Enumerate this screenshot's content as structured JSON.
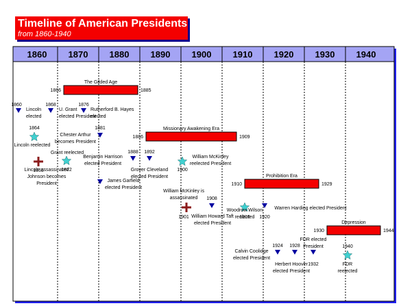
{
  "header": {
    "title": "Timeline of American Presidents",
    "subtitle": "from 1860-1940"
  },
  "axis": {
    "decades": [
      "1860",
      "1870",
      "1880",
      "1890",
      "1900",
      "1910",
      "1920",
      "1930",
      "1940"
    ]
  },
  "colors": {
    "title_bg": "#f40000",
    "title_shadow": "#00008b",
    "era_bar": "#f40000",
    "axis_bg": "#2020ee",
    "axis_header": "#a4a4f4",
    "marker_triangle": "#0000a0",
    "marker_star": "#40d0d0",
    "marker_cross": "#8b1a1a"
  },
  "eras": [
    {
      "name": "The Gilded Age",
      "start": "1866",
      "end": "1885"
    },
    {
      "name": "Missionary Awakening Era",
      "start": "1886",
      "end": "1909"
    },
    {
      "name": "Prohibition Era",
      "start": "1910",
      "end": "1929"
    },
    {
      "name": "Depression",
      "start": "1930",
      "end": "1944"
    }
  ],
  "events": [
    {
      "marker": "triangle",
      "year": "1860",
      "text": [
        "Lincoln",
        "elected"
      ]
    },
    {
      "marker": "triangle",
      "year": "1868",
      "text": [
        "U. Grant",
        "elected President"
      ]
    },
    {
      "marker": "triangle",
      "year": "1876",
      "text": [
        "Rutherford B. Hayes",
        "elected"
      ]
    },
    {
      "marker": "star",
      "year": "1864",
      "text": [
        "Lincoln reelected"
      ]
    },
    {
      "marker": "triangle",
      "year": "1881",
      "text": [
        "Chester Arthur",
        "becomes President"
      ]
    },
    {
      "marker": "star",
      "year": "1872",
      "text": [
        "Grant reelected"
      ]
    },
    {
      "marker": "cross",
      "year": "1865",
      "text": [
        "Lincoln assassinated",
        "Johnson becomes",
        "President"
      ]
    },
    {
      "marker": "triangle",
      "year": "1888",
      "text": [
        "Benjamin Harrison",
        "elected President"
      ]
    },
    {
      "marker": "triangle",
      "year": "1892",
      "text": [
        "Grover Cleveland",
        "elected President"
      ]
    },
    {
      "marker": "triangle",
      "year": "",
      "text": [
        "James Garfield",
        "elected President"
      ]
    },
    {
      "marker": "star",
      "year": "1900",
      "text": [
        "William McKinley",
        "reelected President"
      ]
    },
    {
      "marker": "cross",
      "year": "1901",
      "text": [
        "William McKinley is",
        "assassinated"
      ]
    },
    {
      "marker": "triangle",
      "year": "1908",
      "text": [
        "William Howard Taft",
        "elected President"
      ]
    },
    {
      "marker": "star",
      "year": "1916",
      "text": [
        "Woodrow Wilson",
        "reelected"
      ]
    },
    {
      "marker": "triangle",
      "year": "1920",
      "text": [
        "Warren Harding elected President"
      ]
    },
    {
      "marker": "triangle",
      "year": "1924",
      "text": [
        "Calvin Coolidge",
        "elected President"
      ]
    },
    {
      "marker": "triangle",
      "year": "1928",
      "text": [
        "Herbert Hoover",
        "elected President"
      ]
    },
    {
      "marker": "triangle",
      "year": "1932",
      "text": [
        "FDR elected",
        "President"
      ]
    },
    {
      "marker": "star",
      "year": "1940",
      "text": [
        "FDR",
        "reelected"
      ]
    }
  ]
}
